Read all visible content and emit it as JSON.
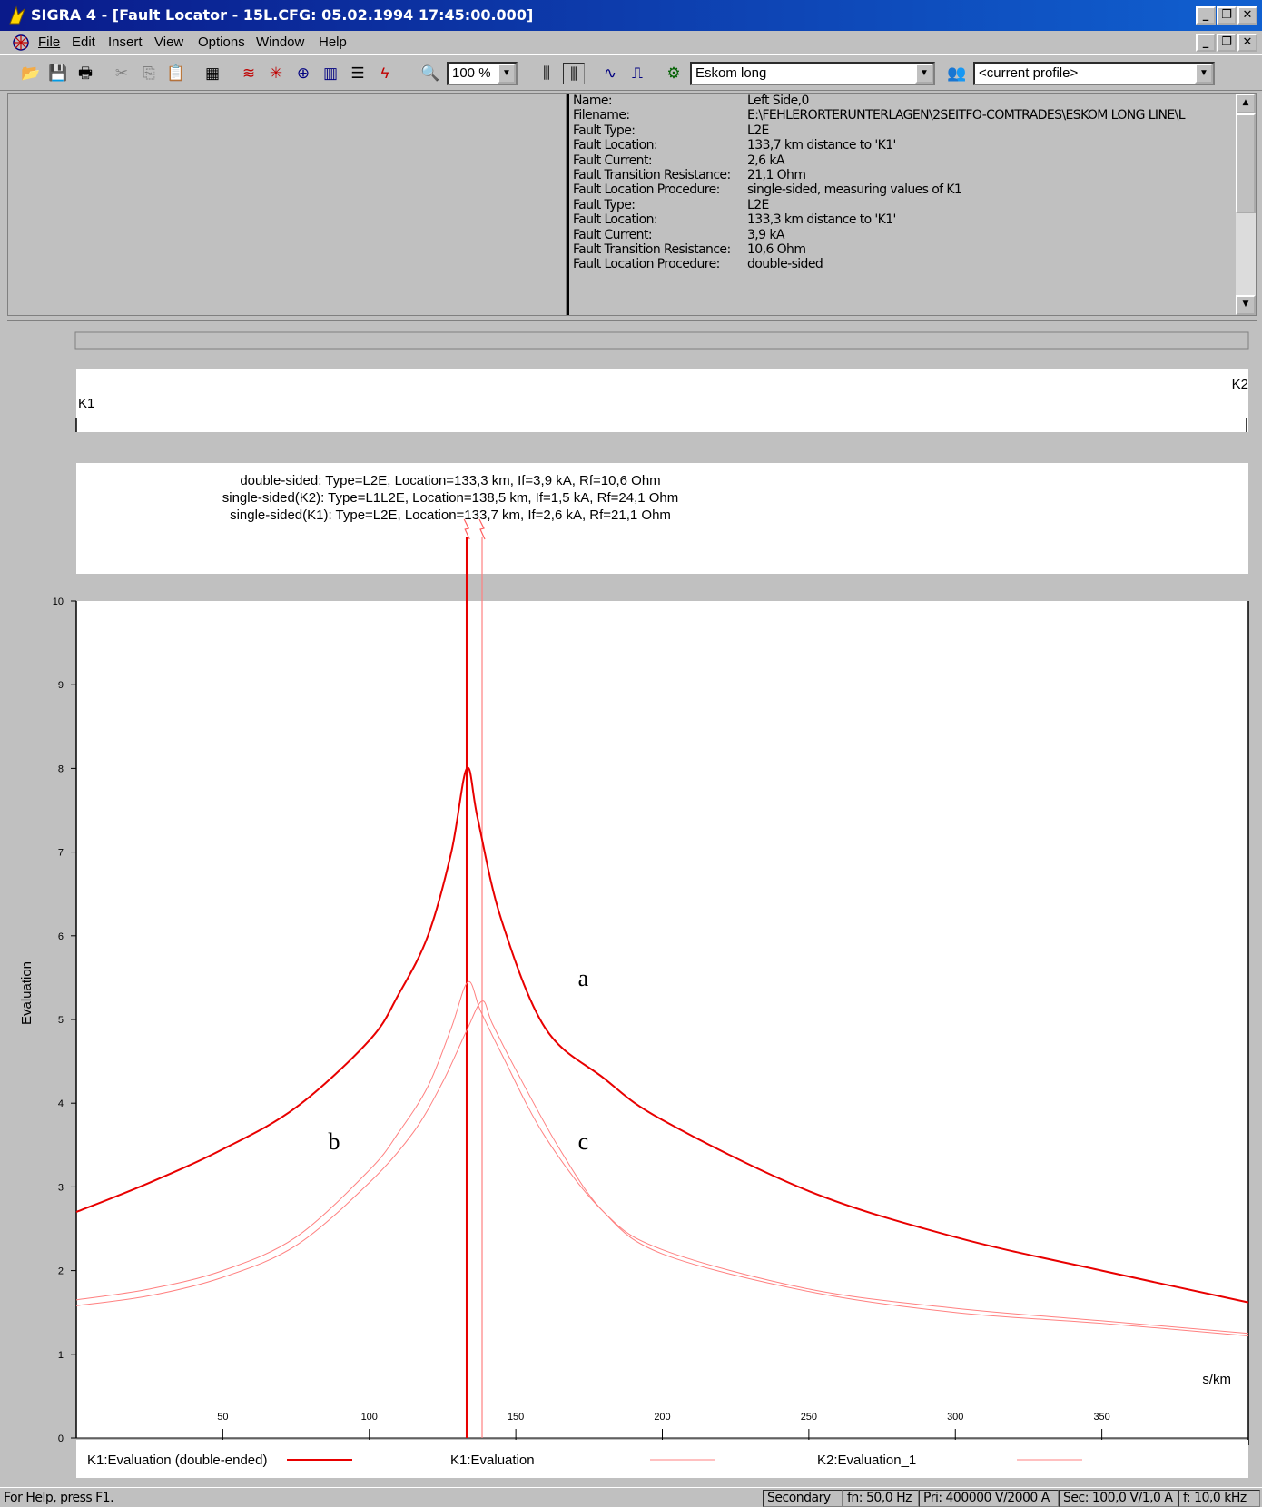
{
  "app": {
    "title": "SIGRA 4 - [Fault Locator - 15L.CFG: 05.02.1994 17:45:00.000]"
  },
  "menu": [
    "File",
    "Edit",
    "Insert",
    "View",
    "Options",
    "Window",
    "Help"
  ],
  "toolbar": {
    "zoom": "100 %",
    "line_select": "Eskom long",
    "profile_select": "<current profile>"
  },
  "info": {
    "rows": [
      {
        "label": "Name:",
        "value": "Left Side,0"
      },
      {
        "label": "Filename:",
        "value": "E:\\FEHLERORTERUNTERLAGEN\\2SEITFO-COMTRADES\\ESKOM LONG LINE\\L"
      },
      {
        "label": "Fault Type:",
        "value": "L2E"
      },
      {
        "label": "Fault Location:",
        "value": "133,7 km distance to 'K1'"
      },
      {
        "label": "Fault Current:",
        "value": "2,6 kA"
      },
      {
        "label": "Fault Transition Resistance:",
        "value": "21,1 Ohm"
      },
      {
        "label": "Fault Location Procedure:",
        "value": "single-sided, measuring values of K1"
      },
      {
        "label": "Fault Type:",
        "value": "L2E"
      },
      {
        "label": "Fault Location:",
        "value": "133,3 km distance to 'K1'"
      },
      {
        "label": "Fault Current:",
        "value": "3,9 kA"
      },
      {
        "label": "Fault Transition Resistance:",
        "value": "10,6 Ohm"
      },
      {
        "label": "Fault Location Procedure:",
        "value": "double-sided"
      }
    ]
  },
  "line_diagram": {
    "left_label": "K1",
    "right_label": "K2"
  },
  "results": [
    "double-sided: Type=L2E, Location=133,3 km, If=3,9 kA, Rf=10,6 Ohm",
    "single-sided(K2): Type=L1L2E, Location=138,5 km, If=1,5 kA, Rf=24,1 Ohm",
    "single-sided(K1): Type=L2E, Location=133,7 km, If=2,6 kA, Rf=21,1 Ohm"
  ],
  "chart_data": {
    "type": "line",
    "ylabel": "Evaluation",
    "xlabel": "s/km",
    "xlim": [
      0,
      400
    ],
    "ylim": [
      0,
      10
    ],
    "xticks": [
      50,
      100,
      150,
      200,
      250,
      300,
      350
    ],
    "yticks": [
      0,
      1,
      2,
      3,
      4,
      5,
      6,
      7,
      8,
      9,
      10
    ],
    "fault_markers_km": [
      133.3,
      138.5
    ],
    "series": [
      {
        "name": "K1:Evaluation (double-ended)",
        "color": "#e80000",
        "width": 2,
        "x": [
          0,
          25,
          50,
          75,
          100,
          110,
          120,
          128,
          133.3,
          137,
          145,
          160,
          180,
          200,
          250,
          300,
          350,
          400
        ],
        "y": [
          2.7,
          3.05,
          3.45,
          3.95,
          4.75,
          5.3,
          6.0,
          7.0,
          8.0,
          7.4,
          6.2,
          4.9,
          4.3,
          3.8,
          2.95,
          2.4,
          2.0,
          1.62
        ]
      },
      {
        "name": "K1:Evaluation",
        "color": "#ff8080",
        "width": 1,
        "x": [
          0,
          25,
          50,
          75,
          100,
          110,
          120,
          128,
          133.7,
          138,
          145,
          160,
          180,
          200,
          250,
          300,
          350,
          400
        ],
        "y": [
          1.65,
          1.78,
          2.0,
          2.4,
          3.2,
          3.65,
          4.2,
          4.9,
          5.45,
          5.1,
          4.6,
          3.6,
          2.7,
          2.25,
          1.78,
          1.55,
          1.4,
          1.25
        ]
      },
      {
        "name": "K2:Evaluation_1",
        "color": "#ff8080",
        "width": 1,
        "x": [
          0,
          25,
          50,
          75,
          100,
          115,
          125,
          133,
          138.5,
          142,
          150,
          165,
          180,
          200,
          250,
          300,
          350,
          400
        ],
        "y": [
          1.58,
          1.7,
          1.92,
          2.3,
          3.05,
          3.65,
          4.25,
          4.85,
          5.22,
          4.95,
          4.4,
          3.45,
          2.7,
          2.2,
          1.75,
          1.5,
          1.37,
          1.22
        ]
      }
    ],
    "annotations": [
      {
        "text": "a",
        "x": 173,
        "y": 5.4
      },
      {
        "text": "b",
        "x": 88,
        "y": 3.45
      },
      {
        "text": "c",
        "x": 173,
        "y": 3.45
      }
    ]
  },
  "legend": [
    {
      "label": "K1:Evaluation (double-ended)"
    },
    {
      "label": "K1:Evaluation"
    },
    {
      "label": "K2:Evaluation_1"
    }
  ],
  "status": {
    "help": "For Help, press F1.",
    "mode": "Secondary",
    "fn": "fn: 50,0 Hz",
    "pri": "Pri: 400000 V/2000 A",
    "sec": "Sec: 100,0 V/1,0 A",
    "f": "f: 10,0 kHz"
  },
  "icons": {
    "app": "sigra-app-icon",
    "doc": "fault-locator-doc-icon"
  },
  "colors": {
    "titlebar": "#0a1a8a",
    "curve_main": "#e80000",
    "curve_secondary": "#ff8080"
  }
}
